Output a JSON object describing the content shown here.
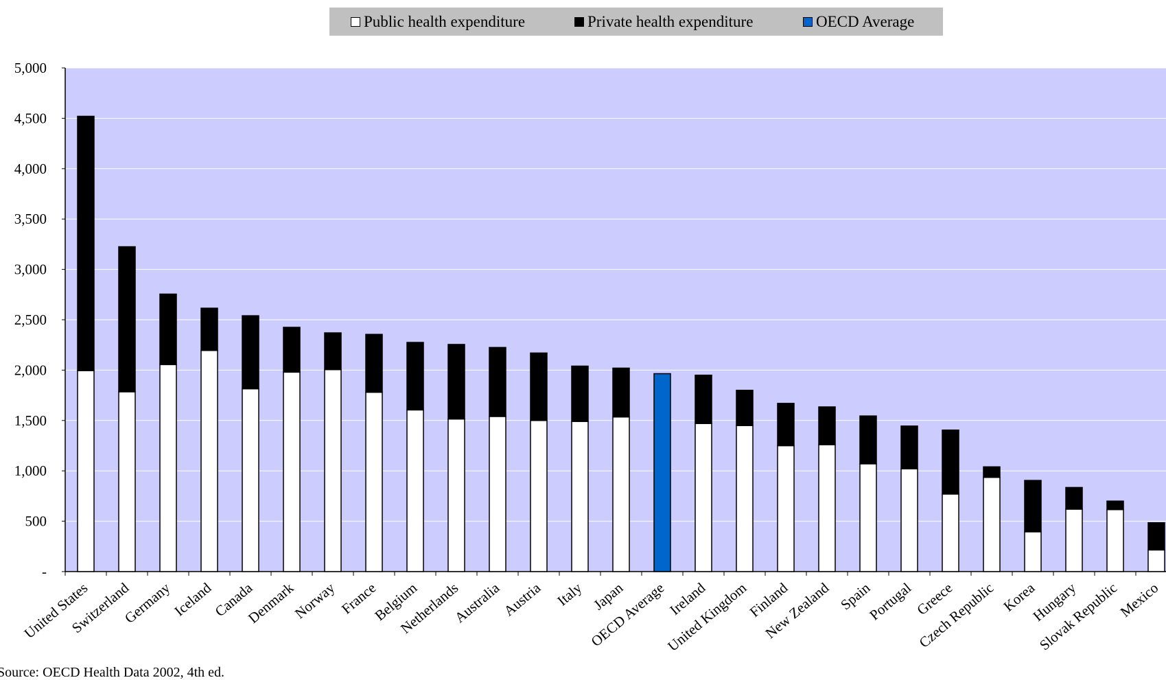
{
  "chart_data": {
    "type": "bar",
    "stacked": true,
    "title": "",
    "xlabel": "",
    "ylabel": "",
    "ylim": [
      0,
      5000
    ],
    "yticks": [
      0,
      500,
      1000,
      1500,
      2000,
      2500,
      3000,
      3500,
      4000,
      4500,
      5000
    ],
    "ytick_labels": [
      "-",
      "500",
      "1,000",
      "1,500",
      "2,000",
      "2,500",
      "3,000",
      "3,500",
      "4,000",
      "4,500",
      "5,000"
    ],
    "grid": true,
    "legend_position": "top",
    "categories": [
      "United States",
      "Switzerland",
      "Germany",
      "Iceland",
      "Canada",
      "Denmark",
      "Norway",
      "France",
      "Belgium",
      "Netherlands",
      "Australia",
      "Austria",
      "Italy",
      "Japan",
      "OECD Average",
      "Ireland",
      "United Kingdom",
      "Finland",
      "New Zealand",
      "Spain",
      "Portugal",
      "Greece",
      "Czech Republic",
      "Korea",
      "Hungary",
      "Slovak Republic",
      "Mexico"
    ],
    "series": [
      {
        "name": "Public health expenditure",
        "color": "#ffffff",
        "values": [
          1995,
          1785,
          2055,
          2195,
          1815,
          1980,
          2005,
          1780,
          1605,
          1515,
          1540,
          1500,
          1490,
          1535,
          null,
          1470,
          1450,
          1250,
          1260,
          1070,
          1020,
          770,
          935,
          395,
          620,
          615,
          215
        ]
      },
      {
        "name": "Private health expenditure",
        "color": "#000000",
        "values": [
          2525,
          1440,
          700,
          420,
          725,
          445,
          365,
          575,
          670,
          740,
          685,
          670,
          550,
          485,
          null,
          480,
          350,
          420,
          375,
          475,
          425,
          635,
          105,
          510,
          215,
          85,
          270
        ]
      },
      {
        "name": "OECD Average",
        "color": "#0066cc",
        "values": [
          null,
          null,
          null,
          null,
          null,
          null,
          null,
          null,
          null,
          null,
          null,
          null,
          null,
          null,
          1965,
          null,
          null,
          null,
          null,
          null,
          null,
          null,
          null,
          null,
          null,
          null,
          null
        ]
      }
    ],
    "colors": {
      "plot_background": "#ccccff",
      "legend_background": "#c0c0c0",
      "gridline": "#ffffff"
    }
  },
  "legend": {
    "public_label": "Public health expenditure",
    "private_label": "Private health expenditure",
    "average_label": "OECD Average"
  },
  "source_note": "Source: OECD Health Data 2002, 4th ed."
}
